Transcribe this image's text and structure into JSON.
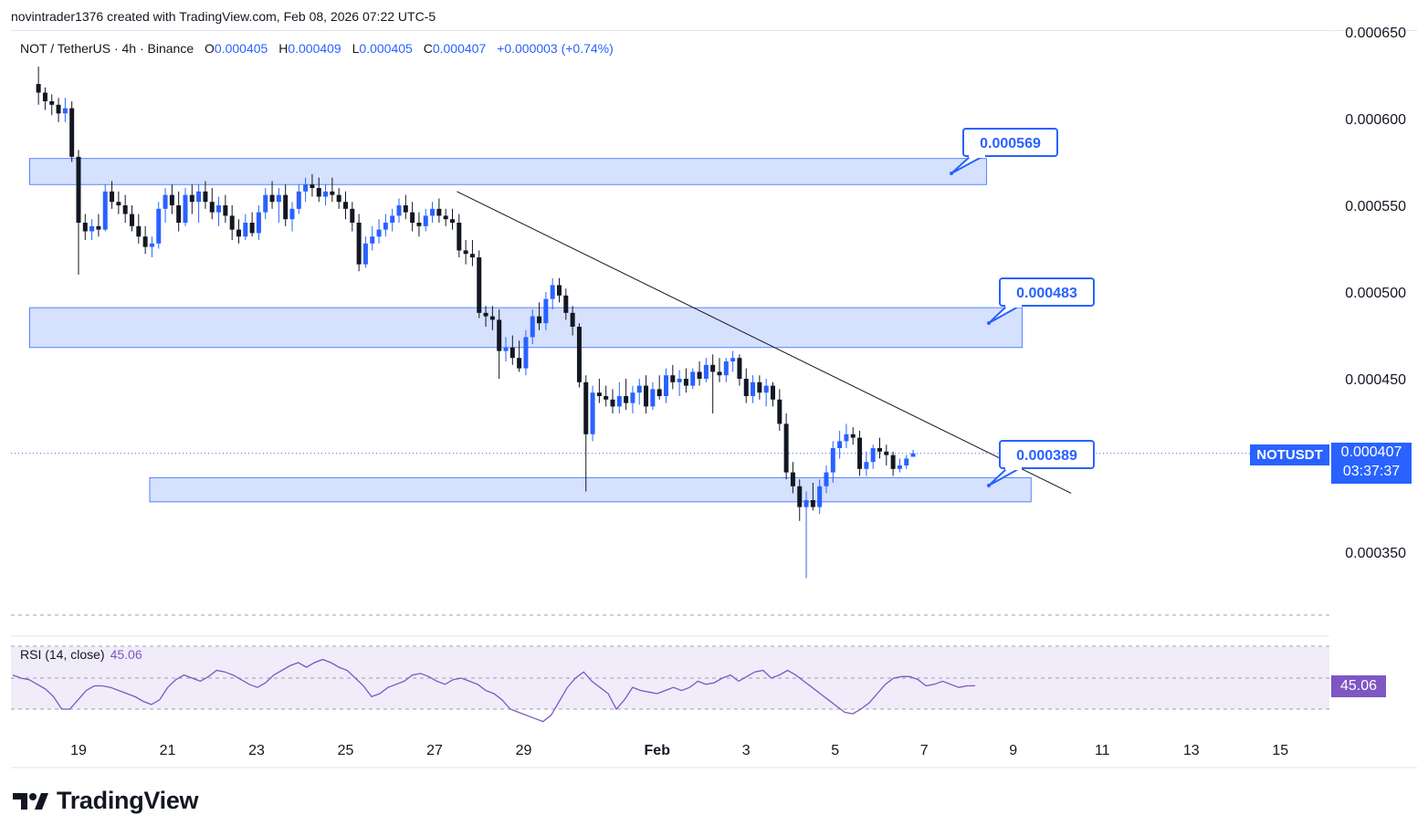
{
  "header": {
    "credit": "novintrader1376 created with TradingView.com, Feb 08, 2026 07:22 UTC-5"
  },
  "legend": {
    "symbol": "NOT / TetherUS · 4h · Binance",
    "o_label": "O",
    "o_value": "0.000405",
    "h_label": "H",
    "h_value": "0.000409",
    "l_label": "L",
    "l_value": "0.000405",
    "c_label": "C",
    "c_value": "0.000407",
    "change": "+0.000003 (+0.74%)"
  },
  "rsi": {
    "label": "RSI (14, close)",
    "value": "45.06",
    "tag": "45.06"
  },
  "price_tag": {
    "symbol": "NOTUSDT",
    "price": "0.000407",
    "countdown": "03:37:37"
  },
  "brand": {
    "name": "TradingView"
  },
  "colors": {
    "up": "#2962ff",
    "down": "#131722",
    "zone_fill": "#d3e0fd",
    "zone_stroke": "#2962ff",
    "rsi_line": "#7e57c2",
    "rsi_band": "#f0ecfa"
  },
  "chart_data": {
    "type": "candlestick",
    "y_axis": {
      "ticks": [
        "0.000650",
        "0.000600",
        "0.000550",
        "0.000500",
        "0.000450",
        "0.000350"
      ],
      "tick_values": [
        0.00065,
        0.0006,
        0.00055,
        0.0005,
        0.00045,
        0.00035
      ]
    },
    "x_axis": {
      "ticks": [
        "19",
        "21",
        "23",
        "25",
        "27",
        "29",
        "Feb",
        "3",
        "5",
        "7",
        "9",
        "11",
        "13",
        "15"
      ],
      "tick_days": [
        19,
        21,
        23,
        25,
        27,
        29,
        32,
        34,
        36,
        38,
        40,
        42,
        44,
        46
      ]
    },
    "zones": [
      {
        "label": "0.000569",
        "top": 0.000577,
        "bottom": 0.000562,
        "x_start": 17.9,
        "x_end": 39.4
      },
      {
        "label": "0.000483",
        "top": 0.000491,
        "bottom": 0.000468,
        "x_start": 17.9,
        "x_end": 40.2
      },
      {
        "label": "0.000389",
        "top": 0.000393,
        "bottom": 0.000379,
        "x_start": 20.6,
        "x_end": 40.4
      }
    ],
    "trendline": {
      "from": {
        "day": 27.5,
        "price": 0.000558
      },
      "to": {
        "day": 41.3,
        "price": 0.000384
      }
    },
    "last_price": 0.000407,
    "candles": [
      [
        18.1,
        0.00062,
        0.00063,
        0.000608,
        0.000615
      ],
      [
        18.25,
        0.000615,
        0.000618,
        0.000605,
        0.00061
      ],
      [
        18.4,
        0.00061,
        0.000614,
        0.000602,
        0.000608
      ],
      [
        18.55,
        0.000608,
        0.000612,
        0.000598,
        0.000603
      ],
      [
        18.7,
        0.000603,
        0.000612,
        0.000598,
        0.000606
      ],
      [
        18.85,
        0.000606,
        0.00061,
        0.000575,
        0.000578
      ],
      [
        19.0,
        0.000578,
        0.000582,
        0.00051,
        0.00054
      ],
      [
        19.15,
        0.00054,
        0.000545,
        0.00053,
        0.000535
      ],
      [
        19.3,
        0.000535,
        0.000542,
        0.00053,
        0.000538
      ],
      [
        19.45,
        0.000538,
        0.000545,
        0.000532,
        0.000536
      ],
      [
        19.6,
        0.000536,
        0.000562,
        0.000535,
        0.000558
      ],
      [
        19.75,
        0.000558,
        0.000564,
        0.000548,
        0.000552
      ],
      [
        19.9,
        0.000552,
        0.000558,
        0.000545,
        0.00055
      ],
      [
        20.05,
        0.00055,
        0.000556,
        0.00054,
        0.000545
      ],
      [
        20.2,
        0.000545,
        0.00055,
        0.000535,
        0.000538
      ],
      [
        20.35,
        0.000538,
        0.000545,
        0.000528,
        0.000532
      ],
      [
        20.5,
        0.000532,
        0.000538,
        0.000522,
        0.000526
      ],
      [
        20.65,
        0.000526,
        0.000532,
        0.00052,
        0.000528
      ],
      [
        20.8,
        0.000528,
        0.000552,
        0.000525,
        0.000548
      ],
      [
        20.95,
        0.000548,
        0.00056,
        0.00054,
        0.000556
      ],
      [
        21.1,
        0.000556,
        0.000562,
        0.000545,
        0.00055
      ],
      [
        21.25,
        0.00055,
        0.000558,
        0.000535,
        0.00054
      ],
      [
        21.4,
        0.00054,
        0.00056,
        0.000538,
        0.000556
      ],
      [
        21.55,
        0.000556,
        0.000562,
        0.000545,
        0.000552
      ],
      [
        21.7,
        0.000552,
        0.000562,
        0.00054,
        0.000558
      ],
      [
        21.85,
        0.000558,
        0.000564,
        0.000548,
        0.000552
      ],
      [
        22.0,
        0.000552,
        0.00056,
        0.000542,
        0.000546
      ],
      [
        22.15,
        0.000546,
        0.000555,
        0.000538,
        0.00055
      ],
      [
        22.3,
        0.00055,
        0.000556,
        0.00054,
        0.000544
      ],
      [
        22.45,
        0.000544,
        0.00055,
        0.00053,
        0.000536
      ],
      [
        22.6,
        0.000536,
        0.000542,
        0.000528,
        0.000532
      ],
      [
        22.75,
        0.000532,
        0.000545,
        0.00053,
        0.00054
      ],
      [
        22.9,
        0.00054,
        0.000546,
        0.000532,
        0.000534
      ],
      [
        23.05,
        0.000534,
        0.00055,
        0.00053,
        0.000546
      ],
      [
        23.2,
        0.000546,
        0.00056,
        0.000542,
        0.000556
      ],
      [
        23.35,
        0.000556,
        0.000564,
        0.000548,
        0.000552
      ],
      [
        23.5,
        0.000552,
        0.00056,
        0.00054,
        0.000556
      ],
      [
        23.65,
        0.000556,
        0.000562,
        0.000538,
        0.000542
      ],
      [
        23.8,
        0.000542,
        0.000552,
        0.000535,
        0.000548
      ],
      [
        23.95,
        0.000548,
        0.000562,
        0.000545,
        0.000558
      ],
      [
        24.1,
        0.000558,
        0.000566,
        0.000552,
        0.000562
      ],
      [
        24.25,
        0.000562,
        0.000568,
        0.000555,
        0.00056
      ],
      [
        24.4,
        0.00056,
        0.000566,
        0.000552,
        0.000555
      ],
      [
        24.55,
        0.000555,
        0.000562,
        0.00055,
        0.000558
      ],
      [
        24.7,
        0.000558,
        0.000566,
        0.000552,
        0.000556
      ],
      [
        24.85,
        0.000556,
        0.00056,
        0.000548,
        0.000552
      ],
      [
        25.0,
        0.000552,
        0.000558,
        0.000542,
        0.000548
      ],
      [
        25.15,
        0.000548,
        0.000552,
        0.000535,
        0.00054
      ],
      [
        25.3,
        0.00054,
        0.000545,
        0.000512,
        0.000516
      ],
      [
        25.45,
        0.000516,
        0.000532,
        0.000514,
        0.000528
      ],
      [
        25.6,
        0.000528,
        0.000538,
        0.000524,
        0.000532
      ],
      [
        25.75,
        0.000532,
        0.000542,
        0.000528,
        0.000536
      ],
      [
        25.9,
        0.000536,
        0.000545,
        0.000532,
        0.00054
      ],
      [
        26.05,
        0.00054,
        0.000548,
        0.000535,
        0.000544
      ],
      [
        26.2,
        0.000544,
        0.000554,
        0.00054,
        0.00055
      ],
      [
        26.35,
        0.00055,
        0.000556,
        0.000542,
        0.000546
      ],
      [
        26.5,
        0.000546,
        0.000552,
        0.000535,
        0.00054
      ],
      [
        26.65,
        0.00054,
        0.000546,
        0.000532,
        0.000538
      ],
      [
        26.8,
        0.000538,
        0.000548,
        0.000535,
        0.000544
      ],
      [
        26.95,
        0.000544,
        0.000552,
        0.00054,
        0.000548
      ],
      [
        27.1,
        0.000548,
        0.000554,
        0.00054,
        0.000544
      ],
      [
        27.25,
        0.000544,
        0.000548,
        0.000538,
        0.000542
      ],
      [
        27.4,
        0.000542,
        0.000548,
        0.000536,
        0.00054
      ],
      [
        27.55,
        0.00054,
        0.000545,
        0.00052,
        0.000524
      ],
      [
        27.7,
        0.000524,
        0.00053,
        0.000516,
        0.000522
      ],
      [
        27.85,
        0.000522,
        0.00053,
        0.000515,
        0.00052
      ],
      [
        28.0,
        0.00052,
        0.000524,
        0.000485,
        0.000488
      ],
      [
        28.15,
        0.000488,
        0.000492,
        0.00048,
        0.000486
      ],
      [
        28.3,
        0.000486,
        0.000492,
        0.000478,
        0.000484
      ],
      [
        28.45,
        0.000484,
        0.00049,
        0.00045,
        0.000466
      ],
      [
        28.6,
        0.000466,
        0.000474,
        0.00046,
        0.000468
      ],
      [
        28.75,
        0.000468,
        0.000475,
        0.000458,
        0.000462
      ],
      [
        28.9,
        0.000462,
        0.000472,
        0.000454,
        0.000456
      ],
      [
        29.05,
        0.000456,
        0.000478,
        0.000452,
        0.000474
      ],
      [
        29.2,
        0.000474,
        0.00049,
        0.00047,
        0.000486
      ],
      [
        29.35,
        0.000486,
        0.000494,
        0.000478,
        0.000482
      ],
      [
        29.5,
        0.000482,
        0.0005,
        0.000478,
        0.000496
      ],
      [
        29.65,
        0.000496,
        0.000508,
        0.00049,
        0.000504
      ],
      [
        29.8,
        0.000504,
        0.000508,
        0.000494,
        0.000498
      ],
      [
        29.95,
        0.000498,
        0.000502,
        0.000484,
        0.000488
      ],
      [
        30.1,
        0.000488,
        0.000492,
        0.000475,
        0.00048
      ],
      [
        30.25,
        0.00048,
        0.000482,
        0.000445,
        0.000448
      ],
      [
        30.4,
        0.000448,
        0.000452,
        0.000385,
        0.000418
      ],
      [
        30.55,
        0.000418,
        0.000446,
        0.000414,
        0.000442
      ],
      [
        30.7,
        0.000442,
        0.00045,
        0.000436,
        0.00044
      ],
      [
        30.85,
        0.00044,
        0.000446,
        0.000434,
        0.000438
      ],
      [
        31.0,
        0.000438,
        0.000444,
        0.00043,
        0.000434
      ],
      [
        31.15,
        0.000434,
        0.000448,
        0.00043,
        0.00044
      ],
      [
        31.3,
        0.00044,
        0.00045,
        0.000432,
        0.000436
      ],
      [
        31.45,
        0.000436,
        0.000446,
        0.00043,
        0.000442
      ],
      [
        31.6,
        0.000442,
        0.00045,
        0.000435,
        0.000446
      ],
      [
        31.75,
        0.000446,
        0.000452,
        0.00043,
        0.000434
      ],
      [
        31.9,
        0.000434,
        0.000448,
        0.000432,
        0.000444
      ],
      [
        32.05,
        0.000444,
        0.000452,
        0.000438,
        0.00044
      ],
      [
        32.2,
        0.00044,
        0.000456,
        0.000436,
        0.000452
      ],
      [
        32.35,
        0.000452,
        0.000458,
        0.000444,
        0.000448
      ],
      [
        32.5,
        0.000448,
        0.000455,
        0.00044,
        0.00045
      ],
      [
        32.65,
        0.00045,
        0.000456,
        0.000442,
        0.000446
      ],
      [
        32.8,
        0.000446,
        0.000456,
        0.000444,
        0.000454
      ],
      [
        32.95,
        0.000454,
        0.00046,
        0.000446,
        0.00045
      ],
      [
        33.1,
        0.00045,
        0.000462,
        0.000448,
        0.000458
      ],
      [
        33.25,
        0.000458,
        0.000464,
        0.00043,
        0.000454
      ],
      [
        33.4,
        0.000454,
        0.000462,
        0.000448,
        0.000452
      ],
      [
        33.55,
        0.000452,
        0.000462,
        0.000448,
        0.00046
      ],
      [
        33.7,
        0.00046,
        0.000466,
        0.000454,
        0.000462
      ],
      [
        33.85,
        0.000462,
        0.000464,
        0.000446,
        0.00045
      ],
      [
        34.0,
        0.00045,
        0.000456,
        0.000436,
        0.00044
      ],
      [
        34.15,
        0.00044,
        0.000452,
        0.000436,
        0.000448
      ],
      [
        34.3,
        0.000448,
        0.000452,
        0.000438,
        0.000442
      ],
      [
        34.45,
        0.000442,
        0.00045,
        0.000434,
        0.000446
      ],
      [
        34.6,
        0.000446,
        0.000448,
        0.000434,
        0.000438
      ],
      [
        34.75,
        0.000438,
        0.000444,
        0.00042,
        0.000424
      ],
      [
        34.9,
        0.000424,
        0.00043,
        0.000392,
        0.000396
      ],
      [
        35.05,
        0.000396,
        0.000402,
        0.000384,
        0.000388
      ],
      [
        35.2,
        0.000388,
        0.000392,
        0.000368,
        0.000376
      ],
      [
        35.35,
        0.000376,
        0.000385,
        0.000335,
        0.00038
      ],
      [
        35.5,
        0.00038,
        0.00039,
        0.000374,
        0.000376
      ],
      [
        35.65,
        0.000376,
        0.000392,
        0.000372,
        0.000388
      ],
      [
        35.8,
        0.000388,
        0.0004,
        0.000384,
        0.000396
      ],
      [
        35.95,
        0.000396,
        0.000414,
        0.00039,
        0.00041
      ],
      [
        36.1,
        0.00041,
        0.00042,
        0.000404,
        0.000414
      ],
      [
        36.25,
        0.000414,
        0.000424,
        0.00041,
        0.000418
      ],
      [
        36.4,
        0.000418,
        0.000422,
        0.000412,
        0.000416
      ],
      [
        36.55,
        0.000416,
        0.00042,
        0.000394,
        0.000398
      ],
      [
        36.7,
        0.000398,
        0.000408,
        0.000394,
        0.000402
      ],
      [
        36.85,
        0.000402,
        0.000412,
        0.000398,
        0.00041
      ],
      [
        37.0,
        0.00041,
        0.000416,
        0.000404,
        0.000408
      ],
      [
        37.15,
        0.000408,
        0.000412,
        0.0004,
        0.000406
      ],
      [
        37.3,
        0.000406,
        0.000408,
        0.000394,
        0.000398
      ],
      [
        37.45,
        0.000398,
        0.000404,
        0.000396,
        0.0004
      ],
      [
        37.6,
        0.0004,
        0.000406,
        0.000398,
        0.000404
      ],
      [
        37.75,
        0.000405,
        0.000409,
        0.000405,
        0.000407
      ]
    ],
    "rsi_series": {
      "name": "RSI (14, close)",
      "upper_band": 70,
      "lower_band": 30,
      "mid": 50,
      "values": [
        52,
        50,
        49,
        46,
        43,
        38,
        30,
        30,
        36,
        42,
        45,
        45,
        44,
        42,
        40,
        38,
        35,
        33,
        36,
        44,
        49,
        52,
        50,
        48,
        51,
        55,
        54,
        52,
        49,
        46,
        44,
        47,
        52,
        55,
        58,
        60,
        57,
        60,
        62,
        60,
        57,
        55,
        50,
        45,
        38,
        40,
        44,
        46,
        48,
        52,
        53,
        51,
        48,
        46,
        49,
        50,
        48,
        46,
        42,
        40,
        36,
        30,
        28,
        26,
        24,
        22,
        26,
        35,
        44,
        50,
        54,
        48,
        44,
        40,
        30,
        36,
        44,
        42,
        41,
        40,
        42,
        44,
        42,
        44,
        48,
        46,
        47,
        50,
        52,
        48,
        51,
        54,
        55,
        50,
        52,
        55,
        52,
        48,
        44,
        40,
        36,
        32,
        28,
        27,
        30,
        34,
        40,
        46,
        50,
        51,
        51,
        49,
        45,
        46,
        48,
        46,
        44,
        45,
        45.06
      ]
    }
  }
}
